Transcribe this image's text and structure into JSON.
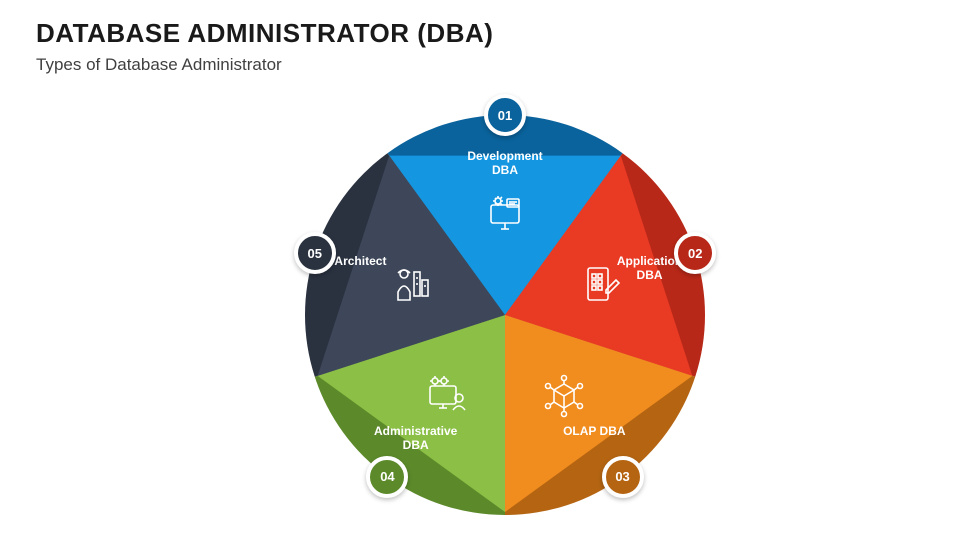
{
  "header": {
    "title": "DATABASE ADMINISTRATOR (DBA)",
    "subtitle": "Types of Database Administrator"
  },
  "chart": {
    "type": "pentagon-pie",
    "background_color": "#ffffff",
    "radius": 200,
    "badge_ring_color": "#ffffff",
    "label_fontsize": 12,
    "label_color": "#ffffff",
    "segments": [
      {
        "index": 0,
        "number": "01",
        "label": "Development\nDBA",
        "slice_color": "#1496e0",
        "outer_color": "#0a639c",
        "badge_color": "#0a639c",
        "start_angle": -126,
        "end_angle": -54,
        "icon": "monitor-gear"
      },
      {
        "index": 1,
        "number": "02",
        "label": "Application\nDBA",
        "slice_color": "#e93a24",
        "outer_color": "#b82818",
        "badge_color": "#b82818",
        "start_angle": -54,
        "end_angle": 18,
        "icon": "tablet-edit"
      },
      {
        "index": 2,
        "number": "03",
        "label": "OLAP DBA",
        "slice_color": "#f18c1e",
        "outer_color": "#b56512",
        "badge_color": "#b56512",
        "start_angle": 18,
        "end_angle": 90,
        "icon": "cube-network"
      },
      {
        "index": 3,
        "number": "04",
        "label": "Administrative\nDBA",
        "slice_color": "#8bbf46",
        "outer_color": "#5c8a2a",
        "badge_color": "#5c8a2a",
        "start_angle": 90,
        "end_angle": 162,
        "icon": "admin-screen"
      },
      {
        "index": 4,
        "number": "05",
        "label": "Architect",
        "slice_color": "#3d4759",
        "outer_color": "#2a3240",
        "badge_color": "#2a3240",
        "start_angle": 162,
        "end_angle": 234,
        "icon": "architect-person"
      }
    ]
  }
}
